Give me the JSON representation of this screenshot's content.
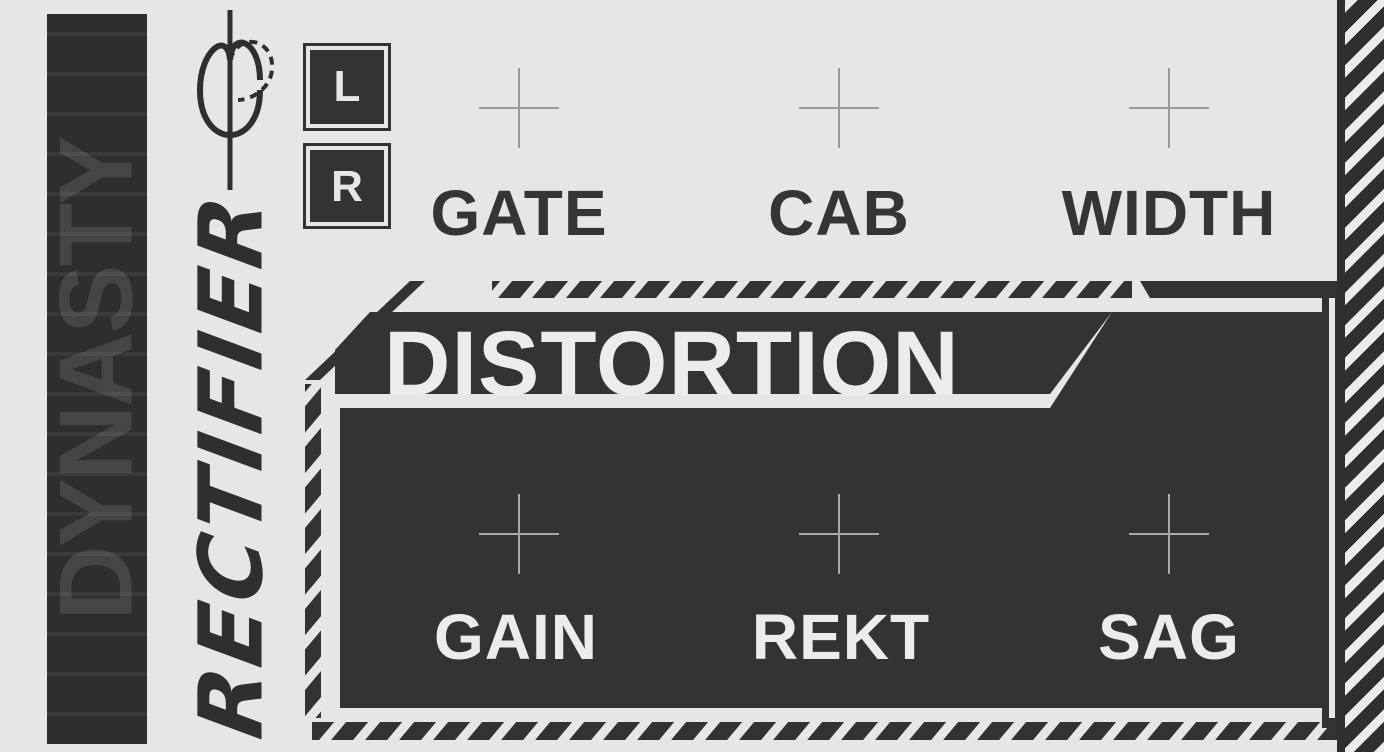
{
  "brand": {
    "vertical_text": "DYNASTY",
    "product_name": "RECTIFIER"
  },
  "channels": {
    "left_label": "L",
    "right_label": "R"
  },
  "top_controls": [
    {
      "label": "GATE"
    },
    {
      "label": "CAB"
    },
    {
      "label": "WIDTH"
    }
  ],
  "distortion": {
    "title": "DISTORTION",
    "controls": [
      {
        "label": "GAIN"
      },
      {
        "label": "REKT"
      },
      {
        "label": "SAG"
      }
    ]
  },
  "colors": {
    "background": "#e6e6e6",
    "ink": "#353535",
    "panel_dark": "#333333",
    "label_light": "#ececec"
  },
  "icons": {
    "wave": "rectifier-wave-icon",
    "knob": "crosshair-knob-icon"
  }
}
